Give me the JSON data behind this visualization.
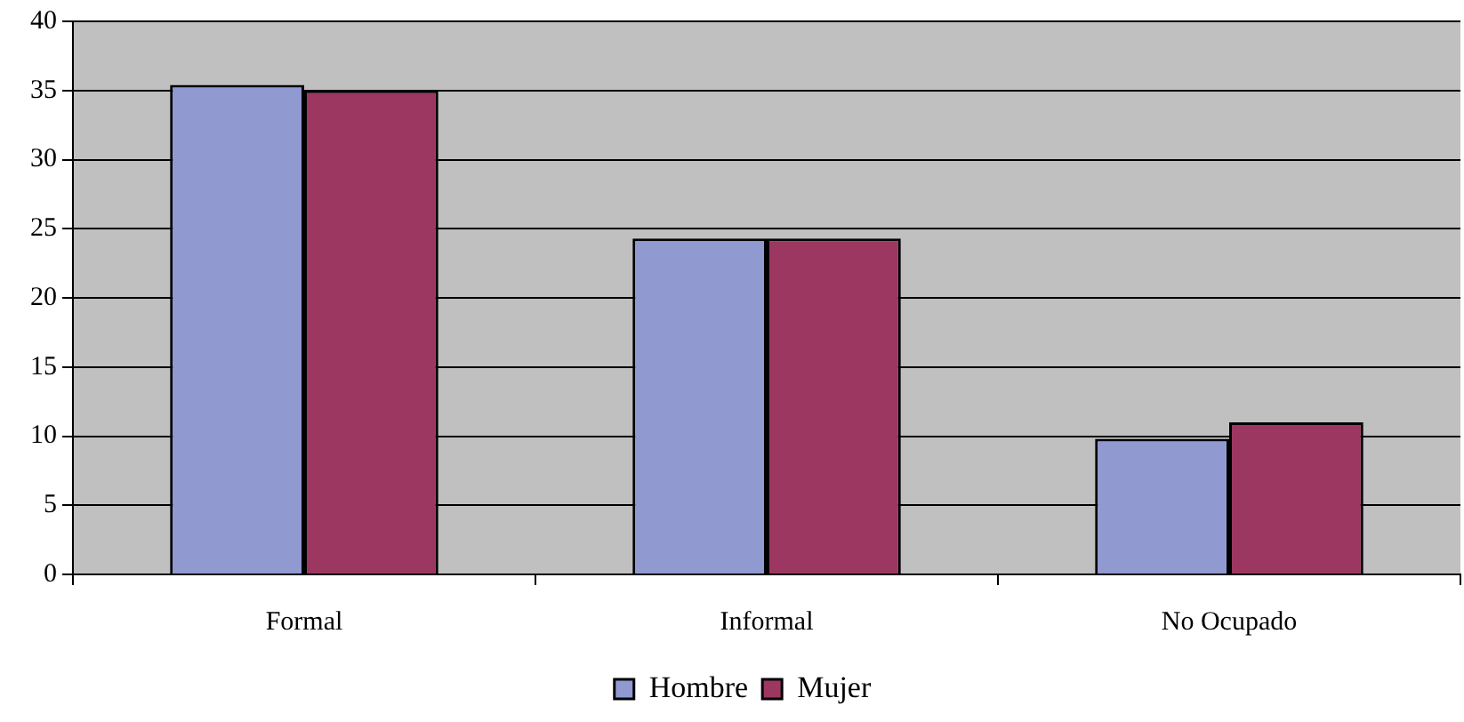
{
  "chart_data": {
    "type": "bar",
    "categories": [
      "Formal",
      "Informal",
      "No Ocupado"
    ],
    "series": [
      {
        "name": "Hombre",
        "color": "#9099d0",
        "values": [
          35.4,
          24.3,
          9.8
        ]
      },
      {
        "name": "Mujer",
        "color": "#9c3762",
        "values": [
          35,
          24.3,
          11
        ]
      }
    ],
    "ylim": [
      0,
      40
    ],
    "yticks": [
      0,
      5,
      10,
      15,
      20,
      25,
      30,
      35,
      40
    ],
    "grid": "y",
    "legend": "bottom"
  }
}
